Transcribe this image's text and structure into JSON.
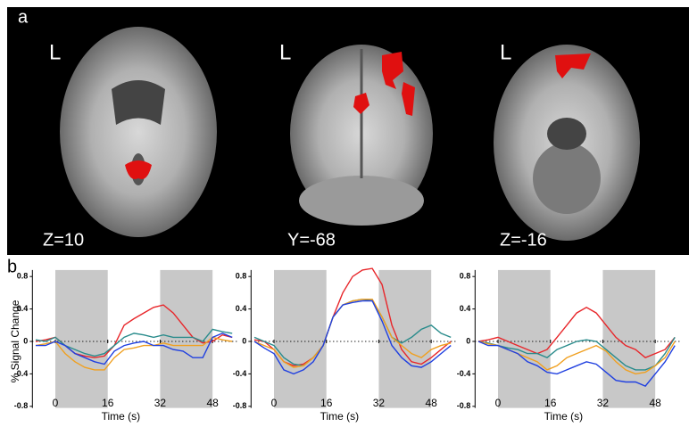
{
  "panel_a": {
    "label": "a",
    "slices": [
      {
        "side": "L",
        "coordinate": "Z=10"
      },
      {
        "side": "L",
        "coordinate": "Y=-68"
      },
      {
        "side": "L",
        "coordinate": "Z=-16"
      }
    ]
  },
  "panel_b": {
    "label": "b"
  },
  "chart_data": [
    {
      "type": "line",
      "xlabel": "Time (s)",
      "ylabel": "% Signal Change",
      "x": [
        -6,
        -3,
        0,
        3,
        6,
        9,
        12,
        15,
        18,
        21,
        24,
        27,
        30,
        33,
        36,
        39,
        42,
        45,
        48,
        51,
        54
      ],
      "xlim": [
        -7,
        56
      ],
      "ylim": [
        -0.82,
        0.88
      ],
      "xticks": [
        0,
        16,
        32,
        48
      ],
      "yticks": [
        -0.8,
        -0.4,
        0,
        0.4,
        0.8
      ],
      "shaded_ranges": [
        [
          0,
          16
        ],
        [
          32,
          48
        ]
      ],
      "shade_color": "#c8c8c8",
      "series": [
        {
          "color": "#e8262a",
          "values": [
            0,
            0.02,
            0.05,
            -0.05,
            -0.15,
            -0.18,
            -0.2,
            -0.18,
            -0.05,
            0.2,
            0.28,
            0.35,
            0.42,
            0.45,
            0.35,
            0.2,
            0.05,
            -0.02,
            0,
            0.08,
            0.05
          ]
        },
        {
          "color": "#2a8c8c",
          "values": [
            0.02,
            0,
            0.05,
            -0.05,
            -0.1,
            -0.15,
            -0.18,
            -0.15,
            -0.05,
            0.05,
            0.1,
            0.08,
            0.05,
            0.08,
            0.05,
            0.05,
            0.05,
            0,
            0.15,
            0.12,
            0.1
          ]
        },
        {
          "color": "#f0a020",
          "values": [
            -0.05,
            -0.03,
            0,
            -0.15,
            -0.25,
            -0.32,
            -0.35,
            -0.35,
            -0.2,
            -0.1,
            -0.08,
            -0.05,
            -0.05,
            -0.02,
            -0.05,
            -0.05,
            -0.05,
            -0.05,
            0.05,
            0.02,
            0
          ]
        },
        {
          "color": "#2040e0",
          "values": [
            -0.05,
            -0.05,
            0,
            -0.05,
            -0.15,
            -0.2,
            -0.25,
            -0.28,
            -0.12,
            -0.05,
            -0.02,
            0,
            -0.05,
            -0.05,
            -0.1,
            -0.12,
            -0.2,
            -0.2,
            0.05,
            0.1,
            0.05
          ]
        }
      ]
    },
    {
      "type": "line",
      "xlabel": "Time (s)",
      "x": [
        -6,
        -3,
        0,
        3,
        6,
        9,
        12,
        15,
        18,
        21,
        24,
        27,
        30,
        33,
        36,
        39,
        42,
        45,
        48,
        51,
        54
      ],
      "xlim": [
        -7,
        56
      ],
      "ylim": [
        -0.82,
        0.88
      ],
      "xticks": [
        0,
        16,
        32,
        48
      ],
      "yticks": [
        -0.8,
        -0.4,
        0,
        0.4,
        0.8
      ],
      "shaded_ranges": [
        [
          0,
          16
        ],
        [
          32,
          48
        ]
      ],
      "shade_color": "#c8c8c8",
      "series": [
        {
          "color": "#e8262a",
          "values": [
            0.02,
            0,
            -0.1,
            -0.25,
            -0.3,
            -0.28,
            -0.2,
            -0.05,
            0.3,
            0.6,
            0.8,
            0.88,
            0.9,
            0.7,
            0.2,
            -0.1,
            -0.25,
            -0.28,
            -0.2,
            -0.1,
            0
          ]
        },
        {
          "color": "#2a8c8c",
          "values": [
            0.05,
            0,
            -0.05,
            -0.2,
            -0.28,
            -0.3,
            -0.2,
            -0.05,
            0.3,
            0.45,
            0.5,
            0.52,
            0.5,
            0.3,
            0.05,
            -0.02,
            0.05,
            0.15,
            0.2,
            0.1,
            0.05
          ]
        },
        {
          "color": "#f0a020",
          "values": [
            0,
            -0.05,
            -0.1,
            -0.25,
            -0.32,
            -0.3,
            -0.2,
            -0.05,
            0.3,
            0.45,
            0.5,
            0.52,
            0.52,
            0.3,
            0.05,
            -0.05,
            -0.15,
            -0.2,
            -0.1,
            -0.05,
            -0.02
          ]
        },
        {
          "color": "#2040e0",
          "values": [
            0,
            -0.08,
            -0.15,
            -0.35,
            -0.4,
            -0.35,
            -0.25,
            -0.05,
            0.3,
            0.45,
            0.48,
            0.5,
            0.5,
            0.25,
            -0.05,
            -0.2,
            -0.3,
            -0.32,
            -0.25,
            -0.15,
            -0.05
          ]
        }
      ]
    },
    {
      "type": "line",
      "xlabel": "Time (s)",
      "x": [
        -6,
        -3,
        0,
        3,
        6,
        9,
        12,
        15,
        18,
        21,
        24,
        27,
        30,
        33,
        36,
        39,
        42,
        45,
        48,
        51,
        54
      ],
      "xlim": [
        -7,
        56
      ],
      "ylim": [
        -0.82,
        0.88
      ],
      "xticks": [
        0,
        16,
        32,
        48
      ],
      "yticks": [
        -0.8,
        -0.4,
        0,
        0.4,
        0.8
      ],
      "shaded_ranges": [
        [
          0,
          16
        ],
        [
          32,
          48
        ]
      ],
      "shade_color": "#c8c8c8",
      "series": [
        {
          "color": "#e8262a",
          "values": [
            0,
            0.02,
            0.05,
            0,
            -0.05,
            -0.1,
            -0.15,
            -0.1,
            0.05,
            0.2,
            0.35,
            0.42,
            0.35,
            0.2,
            0.05,
            -0.05,
            -0.1,
            -0.2,
            -0.15,
            -0.1,
            0.05
          ]
        },
        {
          "color": "#2a8c8c",
          "values": [
            0,
            -0.02,
            -0.05,
            -0.08,
            -0.1,
            -0.15,
            -0.15,
            -0.2,
            -0.1,
            -0.05,
            0,
            0.02,
            0,
            -0.1,
            -0.2,
            -0.3,
            -0.35,
            -0.35,
            -0.3,
            -0.15,
            0.05
          ]
        },
        {
          "color": "#f0a020",
          "values": [
            0,
            -0.03,
            -0.05,
            -0.1,
            -0.15,
            -0.2,
            -0.25,
            -0.35,
            -0.3,
            -0.2,
            -0.15,
            -0.1,
            -0.05,
            -0.12,
            -0.25,
            -0.35,
            -0.4,
            -0.38,
            -0.3,
            -0.2,
            0
          ]
        },
        {
          "color": "#2040e0",
          "values": [
            0,
            -0.05,
            -0.05,
            -0.1,
            -0.15,
            -0.25,
            -0.3,
            -0.38,
            -0.4,
            -0.35,
            -0.3,
            -0.25,
            -0.28,
            -0.38,
            -0.48,
            -0.5,
            -0.5,
            -0.55,
            -0.4,
            -0.25,
            -0.05
          ]
        }
      ]
    }
  ]
}
